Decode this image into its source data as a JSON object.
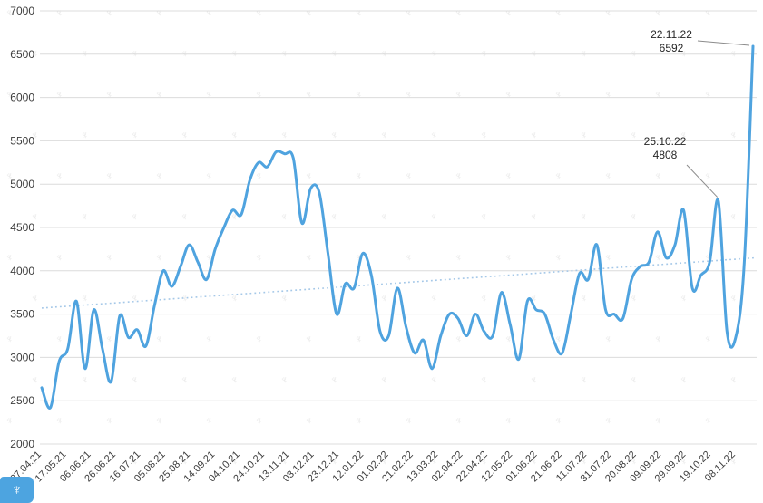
{
  "chart_data": {
    "type": "line",
    "title": "",
    "xlabel": "",
    "ylabel": "",
    "ylim": [
      2000,
      7000
    ],
    "ytick_step": 500,
    "ytick_labels": [
      "2000",
      "2500",
      "3000",
      "3500",
      "4000",
      "4500",
      "5000",
      "5500",
      "6000",
      "6500",
      "7000"
    ],
    "x_tick_labels": [
      "27.04.21",
      "17.05.21",
      "06.06.21",
      "26.06.21",
      "16.07.21",
      "05.08.21",
      "25.08.21",
      "14.09.21",
      "04.10.21",
      "24.10.21",
      "13.11.21",
      "03.12.21",
      "23.12.21",
      "12.01.22",
      "01.02.22",
      "21.02.22",
      "13.03.22",
      "02.04.22",
      "22.04.22",
      "12.05.22",
      "01.06.22",
      "21.06.22",
      "11.07.22",
      "31.07.22",
      "20.08.22",
      "09.09.22",
      "29.09.22",
      "19.10.22",
      "08.11.22"
    ],
    "x": [
      "27.04.21",
      "04.05.21",
      "11.05.21",
      "18.05.21",
      "25.05.21",
      "01.06.21",
      "08.06.21",
      "15.06.21",
      "22.06.21",
      "29.06.21",
      "06.07.21",
      "13.07.21",
      "20.07.21",
      "27.07.21",
      "03.08.21",
      "10.08.21",
      "17.08.21",
      "24.08.21",
      "31.08.21",
      "07.09.21",
      "14.09.21",
      "21.09.21",
      "28.09.21",
      "05.10.21",
      "12.10.21",
      "19.10.21",
      "26.10.21",
      "02.11.21",
      "09.11.21",
      "16.11.21",
      "23.11.21",
      "30.11.21",
      "07.12.21",
      "14.12.21",
      "21.12.21",
      "28.12.21",
      "04.01.22",
      "11.01.22",
      "18.01.22",
      "25.01.22",
      "01.02.22",
      "08.02.22",
      "15.02.22",
      "22.02.22",
      "01.03.22",
      "08.03.22",
      "15.03.22",
      "22.03.22",
      "29.03.22",
      "05.04.22",
      "12.04.22",
      "19.04.22",
      "26.04.22",
      "03.05.22",
      "10.05.22",
      "17.05.22",
      "24.05.22",
      "31.05.22",
      "07.06.22",
      "14.06.22",
      "21.06.22",
      "28.06.22",
      "05.07.22",
      "12.07.22",
      "19.07.22",
      "26.07.22",
      "02.08.22",
      "09.08.22",
      "16.08.22",
      "23.08.22",
      "30.08.22",
      "06.09.22",
      "13.09.22",
      "20.09.22",
      "27.09.22",
      "04.10.22",
      "11.10.22",
      "18.10.22",
      "25.10.22",
      "01.11.22",
      "08.11.22",
      "15.11.22",
      "22.11.22"
    ],
    "values": [
      2650,
      2420,
      2950,
      3100,
      3650,
      2870,
      3550,
      3100,
      2720,
      3480,
      3230,
      3320,
      3130,
      3600,
      4000,
      3820,
      4050,
      4300,
      4100,
      3900,
      4250,
      4500,
      4700,
      4650,
      5050,
      5250,
      5200,
      5370,
      5350,
      5300,
      4550,
      4950,
      4900,
      4200,
      3500,
      3850,
      3800,
      4200,
      3950,
      3300,
      3250,
      3800,
      3350,
      3050,
      3200,
      2870,
      3250,
      3500,
      3450,
      3250,
      3500,
      3300,
      3250,
      3750,
      3380,
      2980,
      3650,
      3550,
      3500,
      3200,
      3050,
      3500,
      3970,
      3900,
      4300,
      3550,
      3500,
      3450,
      3900,
      4050,
      4100,
      4450,
      4150,
      4300,
      4700,
      3800,
      3950,
      4100,
      4808,
      3300,
      3230,
      4100,
      6592
    ],
    "trendline": {
      "style": "dotted",
      "start_value": 3570,
      "end_value": 4150
    },
    "annotations": [
      {
        "date": "22.11.22",
        "value": 6592
      },
      {
        "date": "25.10.22",
        "value": 4808
      }
    ],
    "grid": true,
    "legend": "none",
    "colors": {
      "line": "#4fa3df",
      "trend": "#a5c8e8",
      "grid": "#dcdcdc",
      "tick_label": "#3d3d3d",
      "annotation_text": "#262626",
      "leader_line": "#8c8c8c",
      "watermark": "#e7e7e7",
      "logo_bg": "#4da4e0"
    }
  },
  "logo": {
    "glyph": "♆",
    "watermark_glyph": "♆"
  }
}
